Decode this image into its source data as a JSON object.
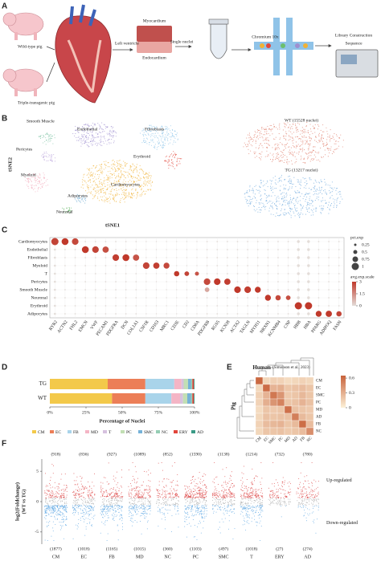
{
  "panel_labels": [
    "A",
    "B",
    "C",
    "D",
    "E",
    "F"
  ],
  "workflow": {
    "groups": [
      "Wild-type pig",
      "Triple-transgenic pig"
    ],
    "steps": [
      "Left ventricle",
      "Myocardium",
      "Endocardium",
      "Single nuclei",
      "Chromium 10x",
      "Library Construction",
      "Sequence"
    ]
  },
  "tsne": {
    "xlabel": "tSNE1",
    "ylabel": "tSNE2",
    "clusters": [
      "Smooth Muscle",
      "Endothelial",
      "Fibroblasts",
      "Pericytes",
      "Erythroid",
      "Myeloid",
      "Cardiomyocytes",
      "Adipocytes",
      "Neuronal"
    ],
    "samples": [
      "WT (15528 nuclei)",
      "TG (13217 nuclei)"
    ]
  },
  "chart_data": [
    {
      "type": "dotplot",
      "categories": [
        "RYR2",
        "ACTN2",
        "FHL2",
        "EMCN",
        "VWF",
        "PECAM1",
        "PDGFRA",
        "DCN",
        "COL1A1",
        "CSF1R",
        "CD163",
        "MRC1",
        "CD3E",
        "CD2",
        "CD8A",
        "PDGFRB",
        "RGS5",
        "KCNJ8",
        "ACTA2",
        "TAGLN",
        "MYH11",
        "NRXN1",
        "KCNMB4",
        "CNP",
        "HBB",
        "HBA",
        "PPARG",
        "ADIPOQ",
        "FASN"
      ],
      "rows": [
        "Cardiomyocytes",
        "Endothelial",
        "Fibroblasts",
        "Myeloid",
        "T",
        "Pericytes",
        "Smooth Muscle",
        "Neuronal",
        "Erythroid",
        "Adipocytes"
      ],
      "size_values": [
        [
          1,
          0.95,
          0.9,
          0.1,
          0.1,
          0.1,
          0.1,
          0.1,
          0.1,
          0.05,
          0.05,
          0.05,
          0.05,
          0.05,
          0.05,
          0.1,
          0.1,
          0.1,
          0.1,
          0.1,
          0.1,
          0.1,
          0.1,
          0.1,
          0.3,
          0.3,
          0.1,
          0.1,
          0.1
        ],
        [
          0.2,
          0.1,
          0.1,
          0.95,
          0.9,
          0.85,
          0.1,
          0.1,
          0.1,
          0.05,
          0.05,
          0.05,
          0.05,
          0.05,
          0.05,
          0.1,
          0.1,
          0.1,
          0.1,
          0.1,
          0.1,
          0.1,
          0.1,
          0.1,
          0.3,
          0.3,
          0.1,
          0.1,
          0.1
        ],
        [
          0.2,
          0.1,
          0.1,
          0.1,
          0.1,
          0.1,
          0.9,
          0.95,
          0.85,
          0.05,
          0.05,
          0.05,
          0.05,
          0.05,
          0.05,
          0.1,
          0.1,
          0.1,
          0.1,
          0.1,
          0.1,
          0.1,
          0.1,
          0.1,
          0.3,
          0.3,
          0.1,
          0.1,
          0.1
        ],
        [
          0.2,
          0.1,
          0.1,
          0.1,
          0.1,
          0.1,
          0.1,
          0.1,
          0.1,
          0.9,
          0.85,
          0.8,
          0.05,
          0.05,
          0.05,
          0.1,
          0.1,
          0.1,
          0.1,
          0.1,
          0.1,
          0.1,
          0.1,
          0.1,
          0.3,
          0.3,
          0.1,
          0.1,
          0.1
        ],
        [
          0.2,
          0.1,
          0.1,
          0.1,
          0.1,
          0.1,
          0.1,
          0.1,
          0.1,
          0.05,
          0.05,
          0.05,
          0.7,
          0.6,
          0.5,
          0.1,
          0.1,
          0.1,
          0.1,
          0.1,
          0.1,
          0.1,
          0.1,
          0.1,
          0.3,
          0.3,
          0.1,
          0.1,
          0.1
        ],
        [
          0.2,
          0.1,
          0.1,
          0.1,
          0.1,
          0.1,
          0.1,
          0.1,
          0.1,
          0.05,
          0.05,
          0.05,
          0.05,
          0.05,
          0.05,
          0.9,
          0.9,
          0.85,
          0.1,
          0.1,
          0.1,
          0.1,
          0.1,
          0.1,
          0.3,
          0.3,
          0.1,
          0.1,
          0.1
        ],
        [
          0.2,
          0.1,
          0.1,
          0.1,
          0.1,
          0.1,
          0.1,
          0.1,
          0.1,
          0.05,
          0.05,
          0.05,
          0.05,
          0.05,
          0.05,
          0.6,
          0.1,
          0.1,
          0.9,
          0.9,
          0.8,
          0.1,
          0.1,
          0.1,
          0.3,
          0.3,
          0.1,
          0.1,
          0.1
        ],
        [
          0.2,
          0.1,
          0.1,
          0.1,
          0.1,
          0.1,
          0.1,
          0.1,
          0.1,
          0.05,
          0.05,
          0.05,
          0.05,
          0.05,
          0.05,
          0.1,
          0.1,
          0.1,
          0.1,
          0.1,
          0.1,
          0.8,
          0.7,
          0.6,
          0.3,
          0.3,
          0.1,
          0.1,
          0.1
        ],
        [
          0.2,
          0.1,
          0.1,
          0.1,
          0.1,
          0.1,
          0.1,
          0.1,
          0.1,
          0.05,
          0.05,
          0.05,
          0.05,
          0.05,
          0.05,
          0.1,
          0.1,
          0.1,
          0.1,
          0.1,
          0.1,
          0.1,
          0.1,
          0.1,
          1,
          1,
          0.1,
          0.1,
          0.1
        ],
        [
          0.2,
          0.1,
          0.1,
          0.1,
          0.1,
          0.1,
          0.1,
          0.1,
          0.1,
          0.05,
          0.05,
          0.05,
          0.05,
          0.05,
          0.05,
          0.1,
          0.1,
          0.1,
          0.1,
          0.1,
          0.1,
          0.1,
          0.1,
          0.1,
          0.3,
          0.3,
          0.8,
          0.85,
          0.7
        ]
      ],
      "values": [
        [
          2.8,
          3,
          2.7,
          0,
          0,
          0,
          0,
          0,
          0,
          0,
          0,
          0,
          0,
          0,
          0,
          0,
          0,
          0,
          0,
          0,
          0,
          0,
          0,
          0,
          0,
          0,
          0,
          0,
          0
        ],
        [
          0,
          0,
          0,
          3,
          2.8,
          2.6,
          0,
          0,
          0,
          0,
          0,
          0,
          0,
          0,
          0,
          0,
          0,
          0,
          0,
          0,
          0,
          0,
          0,
          0,
          0,
          0,
          0,
          0,
          0
        ],
        [
          0,
          0,
          0,
          0,
          0,
          0,
          2.9,
          3,
          2.5,
          0,
          0,
          0,
          0,
          0,
          0,
          0,
          0,
          0,
          0,
          0,
          0,
          0,
          0,
          0,
          0,
          0,
          0,
          0,
          0
        ],
        [
          0,
          0,
          0,
          0,
          0,
          0,
          0,
          0,
          0,
          2.8,
          2.9,
          2.7,
          0,
          0,
          0,
          0,
          0,
          0,
          0,
          0,
          0,
          0,
          0,
          0,
          0,
          0,
          0,
          0,
          0
        ],
        [
          0,
          0,
          0,
          0,
          0,
          0,
          0,
          0,
          0,
          0,
          0,
          0,
          3,
          2.8,
          2.5,
          0,
          0,
          0,
          0,
          0,
          0,
          0,
          0,
          0,
          0,
          0,
          0,
          0,
          0
        ],
        [
          0,
          0,
          0,
          0,
          0,
          0,
          0,
          0,
          0,
          0,
          0,
          0,
          0,
          0,
          0,
          2.7,
          3,
          2.9,
          0,
          0,
          0,
          0,
          0,
          0,
          0,
          0,
          0,
          0,
          0
        ],
        [
          0,
          0,
          0,
          0,
          0,
          0,
          0,
          0,
          0,
          0,
          0,
          0,
          0,
          0,
          0,
          1,
          0,
          0,
          3,
          2.9,
          3,
          0,
          0,
          0,
          0,
          0,
          0,
          0,
          0
        ],
        [
          0,
          0,
          0,
          0,
          0,
          0,
          0,
          0,
          0,
          0,
          0,
          0,
          0,
          0,
          0,
          0,
          0,
          0,
          0,
          0,
          0,
          3,
          2.7,
          2.6,
          0,
          0,
          0,
          0,
          0
        ],
        [
          0,
          0,
          0,
          0,
          0,
          0,
          0,
          0,
          0,
          0,
          0,
          0,
          0,
          0,
          0,
          0,
          0,
          0,
          0,
          0,
          0,
          0,
          0,
          0,
          3,
          3,
          0,
          0,
          0
        ],
        [
          0,
          0,
          0,
          0,
          0,
          0,
          0,
          0,
          0,
          0,
          0,
          0,
          0,
          0,
          0,
          0,
          0,
          0,
          0,
          0,
          0,
          0,
          0,
          0,
          0,
          0,
          3,
          3,
          2.8
        ]
      ],
      "colors": [
        "#e3dcd8",
        "#c0392b"
      ],
      "size_legend": {
        "title": "pct.exp",
        "values": [
          0.25,
          0.5,
          0.75,
          1
        ]
      },
      "color_legend": {
        "title": "avg.exp.scale",
        "lim": [
          0,
          3
        ],
        "ticks": [
          0,
          1.5,
          3
        ]
      }
    },
    {
      "type": "stacked-bar",
      "orientation": "horizontal",
      "categories": [
        "TG",
        "WT"
      ],
      "series": [
        {
          "name": "CM",
          "color": "#f3c94a",
          "values": [
            40,
            43
          ]
        },
        {
          "name": "EC",
          "color": "#ec7e57",
          "values": [
            26,
            23
          ]
        },
        {
          "name": "FB",
          "color": "#a9d4ea",
          "values": [
            20,
            18
          ]
        },
        {
          "name": "MD",
          "color": "#f4b5c5",
          "values": [
            5,
            6
          ]
        },
        {
          "name": "T",
          "color": "#d6c1df",
          "values": [
            1.5,
            2
          ]
        },
        {
          "name": "PC",
          "color": "#c2dfb4",
          "values": [
            3,
            3
          ]
        },
        {
          "name": "SMC",
          "color": "#76b2d8",
          "values": [
            2,
            2.5
          ]
        },
        {
          "name": "NC",
          "color": "#95cdb4",
          "values": [
            1,
            1
          ]
        },
        {
          "name": "ERY",
          "color": "#e2453b",
          "values": [
            1,
            1
          ]
        },
        {
          "name": "AD",
          "color": "#3a9a86",
          "values": [
            0.5,
            0.5
          ]
        }
      ],
      "xlim": [
        0,
        100
      ],
      "xticks": [
        {
          "value": 0,
          "label": "0%"
        },
        {
          "value": 25,
          "label": "25%"
        },
        {
          "value": 50,
          "label": "50%"
        },
        {
          "value": 75,
          "label": "75%"
        },
        {
          "value": 100,
          "label": "100%"
        }
      ],
      "xlabel": "Percentage of Nuclei"
    },
    {
      "type": "heatmap",
      "title": "Human",
      "subtitle": "(Simonson et al., 2023)",
      "ylabel": "Pig",
      "rows": [
        "CM",
        "EC",
        "SMC",
        "PC",
        "MD",
        "AD",
        "FB",
        "NC"
      ],
      "columns": [
        "CM",
        "EC",
        "SMC",
        "PC",
        "MD",
        "AD",
        "FB",
        "NC"
      ],
      "values": [
        [
          0.62,
          0.12,
          0.15,
          0.14,
          0.1,
          0.12,
          0.14,
          0.12
        ],
        [
          0.12,
          0.6,
          0.28,
          0.3,
          0.2,
          0.22,
          0.24,
          0.2
        ],
        [
          0.15,
          0.28,
          0.55,
          0.42,
          0.18,
          0.2,
          0.26,
          0.2
        ],
        [
          0.14,
          0.3,
          0.42,
          0.5,
          0.2,
          0.22,
          0.28,
          0.22
        ],
        [
          0.1,
          0.2,
          0.18,
          0.2,
          0.58,
          0.22,
          0.2,
          0.18
        ],
        [
          0.12,
          0.22,
          0.2,
          0.22,
          0.22,
          0.52,
          0.25,
          0.2
        ],
        [
          0.14,
          0.24,
          0.26,
          0.28,
          0.2,
          0.25,
          0.6,
          0.24
        ],
        [
          0.12,
          0.2,
          0.2,
          0.22,
          0.18,
          0.2,
          0.24,
          0.45
        ]
      ],
      "colors": [
        "#fcf1d8",
        "#c8623a"
      ],
      "clim": [
        0,
        0.65
      ],
      "cticks": [
        0,
        0.3,
        0.6
      ]
    },
    {
      "type": "strip",
      "categories": [
        "CM",
        "EC",
        "FB",
        "MD",
        "NC",
        "PC",
        "SMC",
        "T",
        "ERY",
        "AD"
      ],
      "up": {
        "values": [
          918,
          836,
          927,
          1089,
          852,
          1590,
          1138,
          1214,
          732,
          780
        ],
        "value_labels": [
          "(918)",
          "(836)",
          "(927)",
          "(1089)",
          "(852)",
          "(1590)",
          "(1138)",
          "(1214)",
          "(732)",
          "(780)"
        ]
      },
      "down": {
        "values": [
          1877,
          1018,
          1165,
          1015,
          360,
          1103,
          497,
          1018,
          27,
          274
        ],
        "value_labels": [
          "(1877)",
          "(1018)",
          "(1165)",
          "(1015)",
          "(360)",
          "(1103)",
          "(497)",
          "(1018)",
          "(27)",
          "(274)"
        ]
      },
      "ylabel": "log2(Foldchange)",
      "ylabel2": "(WT vs TG)",
      "ylim": [
        -7,
        7
      ],
      "yticks": [
        -5,
        0,
        5
      ],
      "annotations": [
        "Up-regulated",
        "Down-regulated"
      ],
      "up_color": "#e05a5a",
      "down_color": "#6fb0e6",
      "ns_color": "#b5b5b5"
    }
  ]
}
